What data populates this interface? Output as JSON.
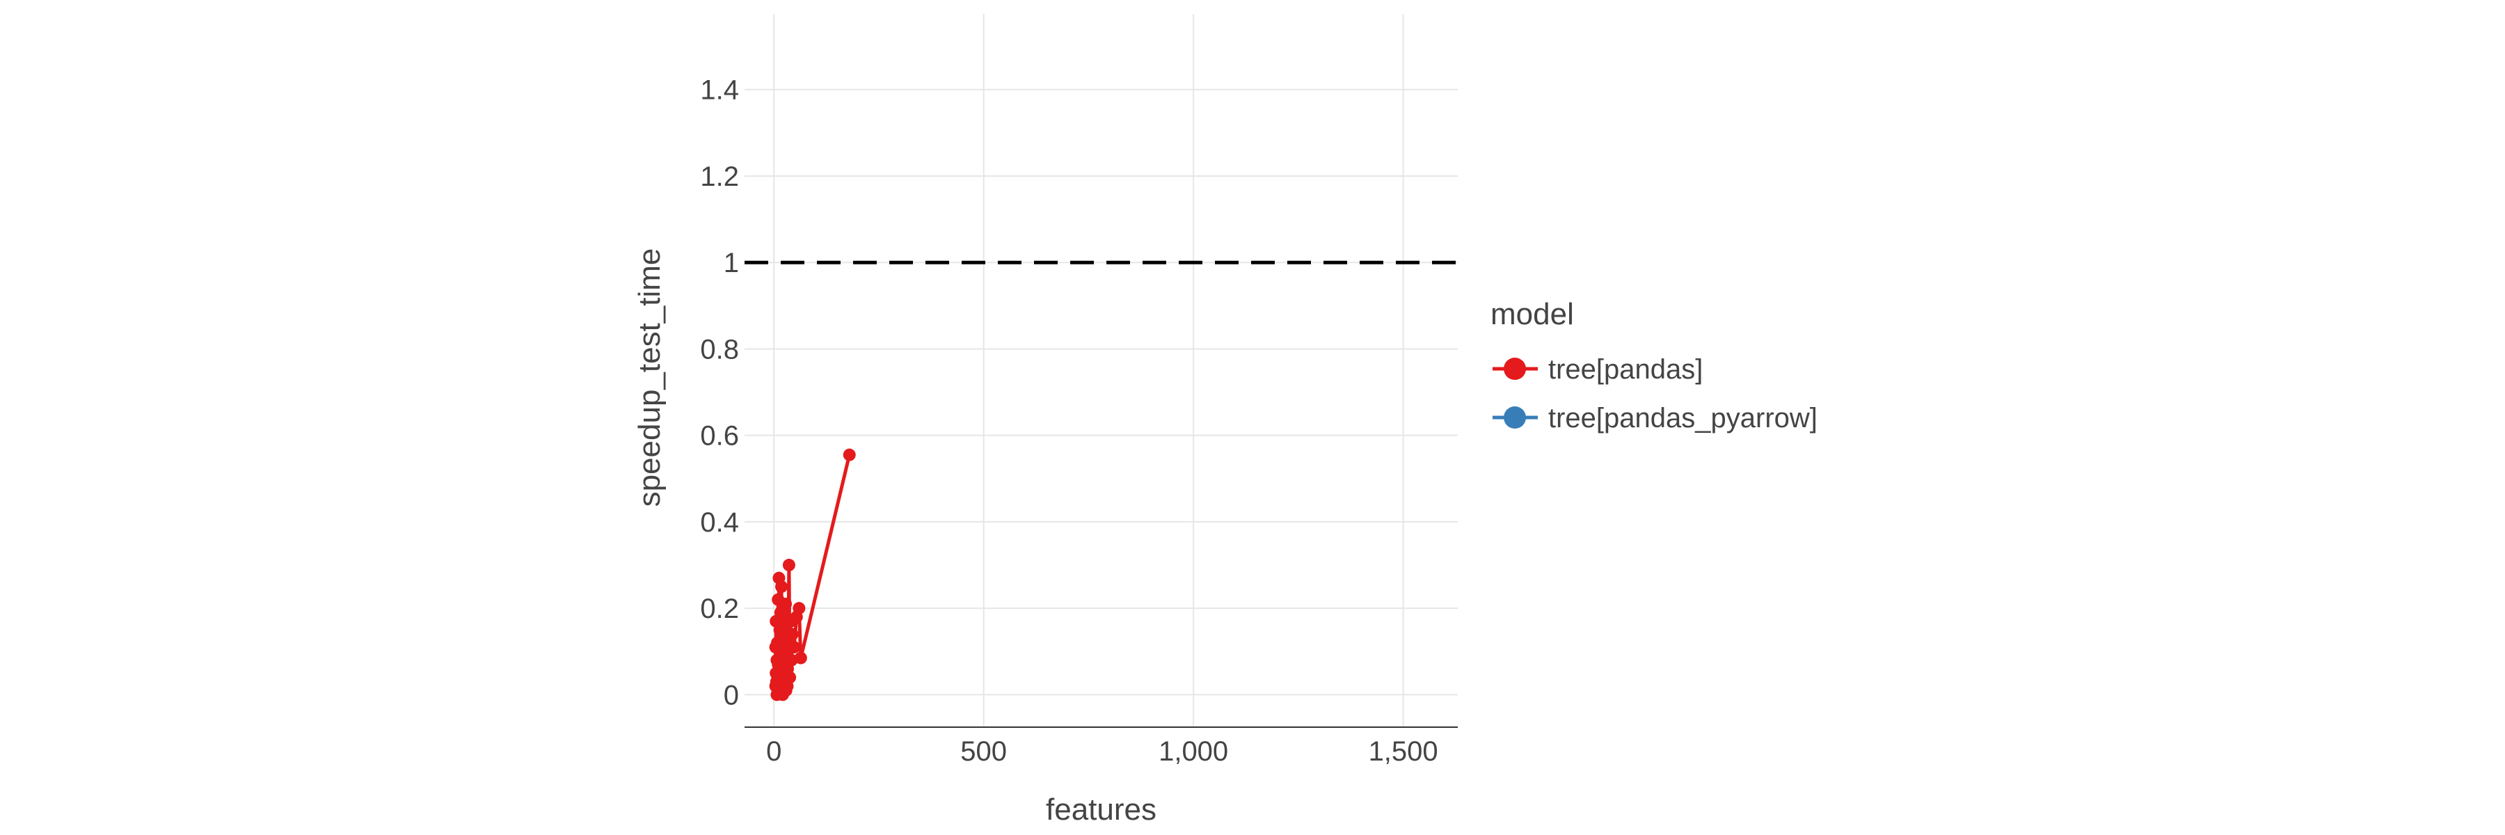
{
  "chart_data": {
    "type": "line",
    "title": "",
    "xlabel": "features",
    "ylabel": "speedup_test_time",
    "xlim": [
      -70,
      1630
    ],
    "ylim": [
      -0.075,
      1.575
    ],
    "x_ticks": [
      0,
      500,
      1000,
      1500
    ],
    "x_tick_labels": [
      "0",
      "500",
      "1,000",
      "1,500"
    ],
    "y_ticks": [
      0,
      0.2,
      0.4,
      0.6,
      0.8,
      1,
      1.2,
      1.4
    ],
    "y_tick_labels": [
      "0",
      "0.2",
      "0.4",
      "0.6",
      "0.8",
      "1",
      "1.2",
      "1.4"
    ],
    "grid": true,
    "reference_line": {
      "y": 1,
      "style": "dashed",
      "color": "#000000"
    },
    "legend": {
      "title": "model",
      "position": "right"
    },
    "series": [
      {
        "name": "tree[pandas]",
        "color": "#e41a1c",
        "x": [
          4,
          4,
          5,
          5,
          6,
          7,
          7,
          8,
          9,
          10,
          10,
          11,
          12,
          13,
          14,
          15,
          16,
          17,
          18,
          19,
          20,
          21,
          22,
          23,
          24,
          25,
          26,
          27,
          28,
          29,
          30,
          31,
          32,
          33,
          34,
          36,
          38,
          40,
          42,
          44,
          48,
          54,
          60,
          64,
          180
        ],
        "y": [
          0.02,
          0.11,
          0.05,
          0.17,
          0.03,
          0.08,
          0.0,
          0.12,
          0.04,
          0.22,
          0.07,
          0.01,
          0.27,
          0.06,
          0.15,
          0.02,
          0.19,
          0.09,
          0.25,
          0.04,
          0.13,
          0.0,
          0.18,
          0.07,
          0.11,
          0.03,
          0.16,
          0.05,
          0.21,
          0.01,
          0.1,
          0.14,
          0.02,
          0.06,
          0.12,
          0.3,
          0.04,
          0.17,
          0.08,
          0.14,
          0.11,
          0.18,
          0.2,
          0.085,
          0.555
        ]
      },
      {
        "name": "tree[pandas_pyarrow]",
        "color": "#377eb8",
        "x": [],
        "y": []
      }
    ]
  }
}
